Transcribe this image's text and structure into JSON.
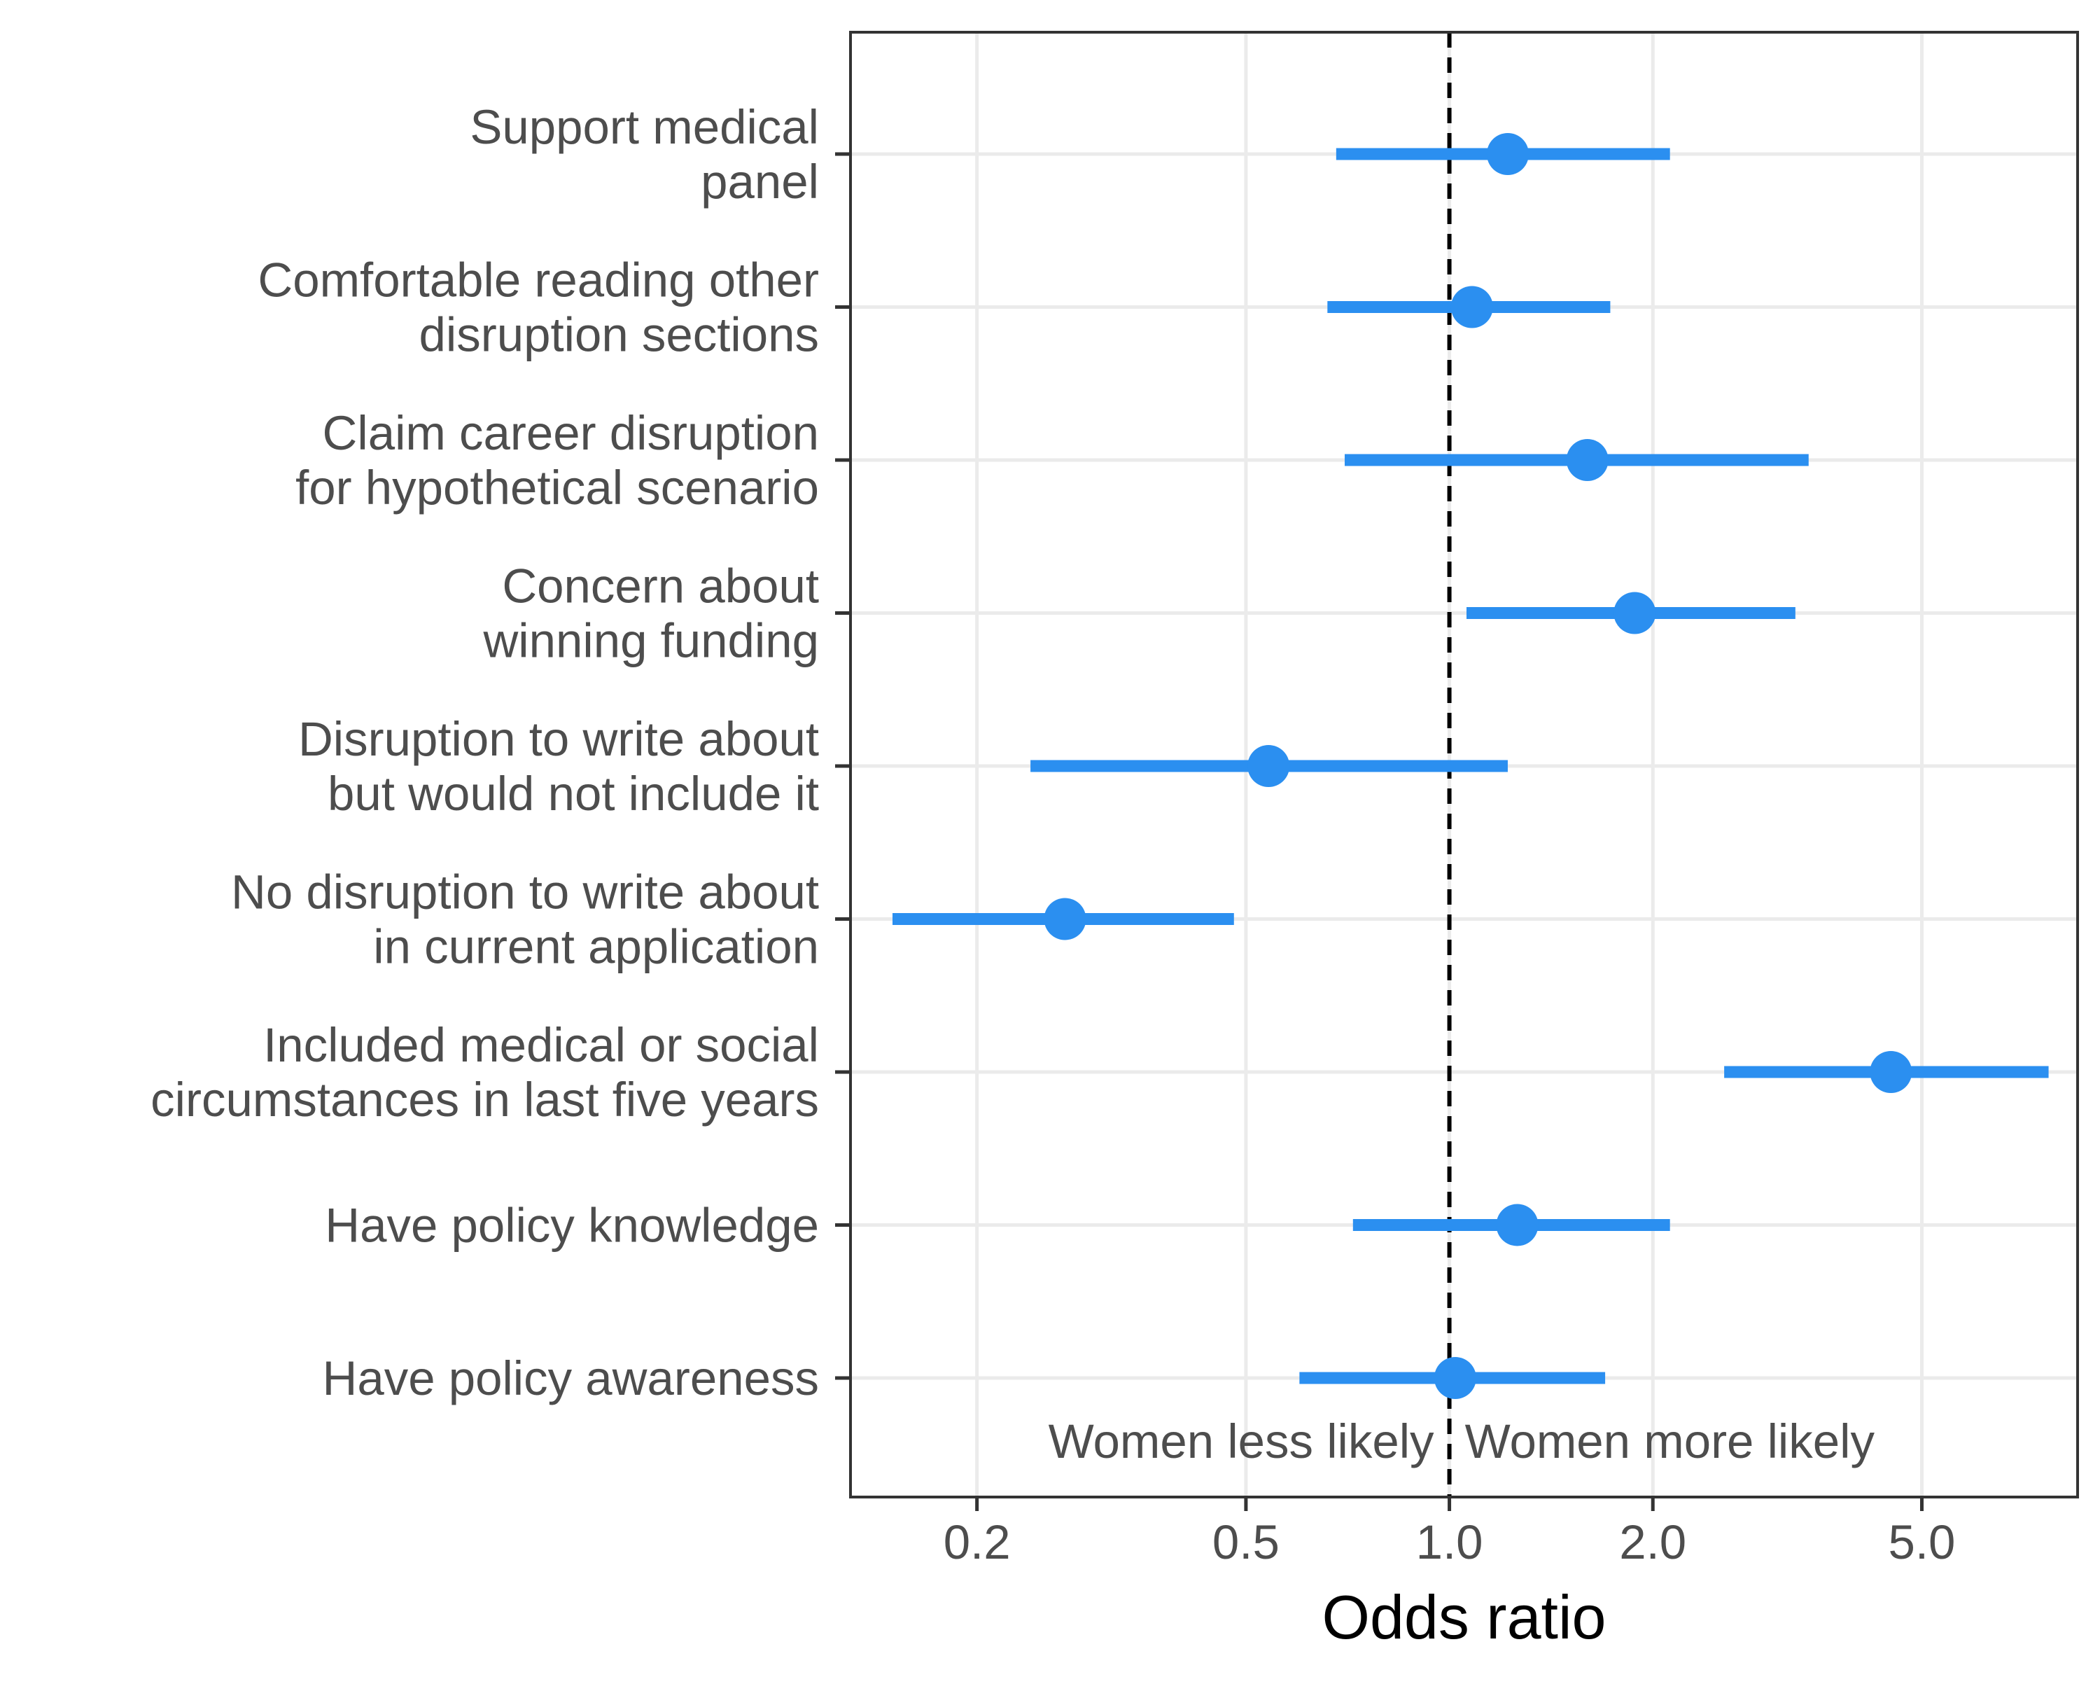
{
  "chart_data": {
    "type": "forest",
    "xlabel": "Odds ratio",
    "xscale": "log",
    "xlim": [
      0.13,
      8.5
    ],
    "xticks": [
      0.2,
      0.5,
      1.0,
      2.0,
      5.0
    ],
    "xtick_labels": [
      "0.2",
      "0.5",
      "1.0",
      "2.0",
      "5.0"
    ],
    "reference_line": 1.0,
    "reference_line_style": "dashed",
    "grid": true,
    "point_color": "#2b8ff0",
    "annotations": {
      "left": "Women less likely",
      "right": "Women more likely"
    },
    "rows": [
      {
        "label": [
          "Support medical",
          "panel"
        ],
        "estimate": 1.22,
        "low": 0.68,
        "high": 2.12
      },
      {
        "label": [
          "Comfortable reading other",
          "disruption sections"
        ],
        "estimate": 1.08,
        "low": 0.66,
        "high": 1.73
      },
      {
        "label": [
          "Claim career disruption",
          "for hypothetical scenario"
        ],
        "estimate": 1.6,
        "low": 0.7,
        "high": 3.4
      },
      {
        "label": [
          "Concern about",
          "winning funding"
        ],
        "estimate": 1.88,
        "low": 1.06,
        "high": 3.25
      },
      {
        "label": [
          "Disruption to write about",
          "but would not include it"
        ],
        "estimate": 0.54,
        "low": 0.24,
        "high": 1.22
      },
      {
        "label": [
          "No disruption to write about",
          "in current application"
        ],
        "estimate": 0.27,
        "low": 0.15,
        "high": 0.48
      },
      {
        "label": [
          "Included medical or social",
          "circumstances in last five years"
        ],
        "estimate": 4.5,
        "low": 2.55,
        "high": 7.7
      },
      {
        "label": [
          "Have policy knowledge"
        ],
        "estimate": 1.26,
        "low": 0.72,
        "high": 2.12
      },
      {
        "label": [
          "Have policy awareness"
        ],
        "estimate": 1.02,
        "low": 0.6,
        "high": 1.7
      }
    ]
  }
}
